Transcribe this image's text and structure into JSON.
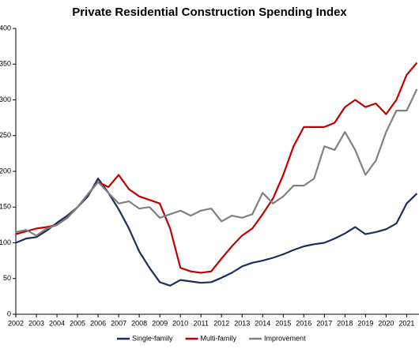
{
  "chart_data": {
    "type": "line",
    "title": "Private Residential Construction Spending Index",
    "x": [
      2002,
      2002.5,
      2003,
      2003.5,
      2004,
      2004.5,
      2005,
      2005.5,
      2006,
      2006.5,
      2007,
      2007.5,
      2008,
      2008.5,
      2009,
      2009.5,
      2010,
      2010.5,
      2011,
      2011.5,
      2012,
      2012.5,
      2013,
      2013.5,
      2014,
      2014.5,
      2015,
      2015.5,
      2016,
      2016.5,
      2017,
      2017.5,
      2018,
      2018.5,
      2019,
      2019.5,
      2020,
      2020.5,
      2021,
      2021.5
    ],
    "series": [
      {
        "name": "Single-family",
        "color": "#1f2d5c",
        "values": [
          100,
          106,
          108,
          117,
          128,
          138,
          150,
          165,
          190,
          170,
          147,
          120,
          88,
          65,
          45,
          40,
          48,
          46,
          44,
          45,
          51,
          58,
          67,
          72,
          75,
          79,
          84,
          90,
          95,
          98,
          100,
          106,
          113,
          122,
          112,
          115,
          119,
          127,
          155,
          169
        ]
      },
      {
        "name": "Multi-family",
        "color": "#c00000",
        "values": [
          112,
          116,
          120,
          122,
          125,
          135,
          150,
          168,
          185,
          178,
          195,
          175,
          165,
          160,
          155,
          120,
          65,
          60,
          58,
          60,
          78,
          95,
          110,
          120,
          140,
          162,
          195,
          235,
          262,
          262,
          262,
          268,
          290,
          300,
          290,
          295,
          280,
          300,
          335,
          352
        ]
      },
      {
        "name": "Improvement",
        "color": "#808080",
        "values": [
          115,
          118,
          110,
          120,
          125,
          135,
          150,
          168,
          185,
          170,
          155,
          158,
          148,
          150,
          135,
          140,
          145,
          138,
          145,
          148,
          130,
          138,
          135,
          140,
          170,
          155,
          165,
          180,
          180,
          190,
          235,
          230,
          255,
          230,
          195,
          215,
          255,
          285,
          285,
          315
        ]
      }
    ],
    "xlim": [
      2002,
      2021.6
    ],
    "xticks": [
      2002,
      2003,
      2004,
      2005,
      2006,
      2007,
      2008,
      2009,
      2010,
      2011,
      2012,
      2013,
      2014,
      2015,
      2016,
      2017,
      2018,
      2019,
      2020,
      2021
    ],
    "ylim": [
      0,
      400
    ],
    "yticks": [
      0,
      50,
      100,
      150,
      200,
      250,
      300,
      350,
      400
    ],
    "grid": false,
    "legend": "bottom"
  }
}
